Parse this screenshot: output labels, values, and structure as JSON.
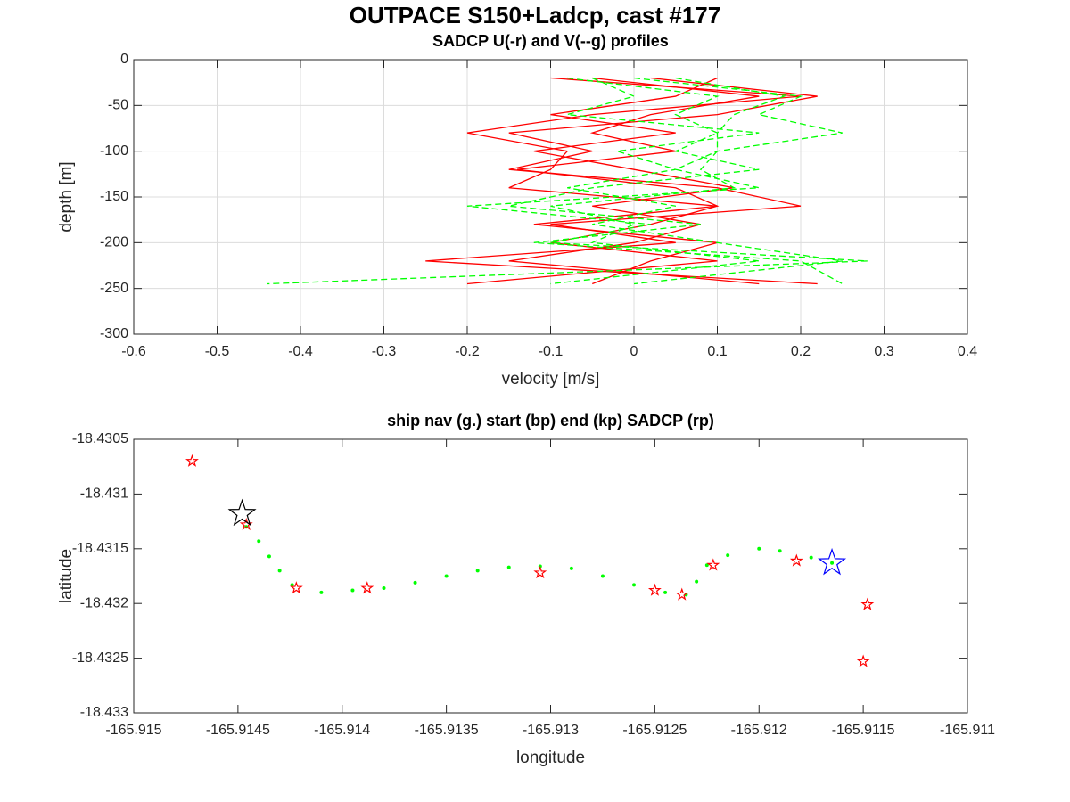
{
  "title": "OUTPACE S150+Ladcp, cast #177",
  "chart_data": [
    {
      "type": "line",
      "title": "SADCP U(-r) and V(--g) profiles",
      "xlabel": "velocity [m/s]",
      "ylabel": "depth [m]",
      "xlim": [
        -0.6,
        0.4
      ],
      "xticks": [
        -0.6,
        -0.5,
        -0.4,
        -0.3,
        -0.2,
        -0.1,
        0,
        0.1,
        0.2,
        0.3,
        0.4
      ],
      "ylim": [
        -300,
        0
      ],
      "yticks": [
        -300,
        -250,
        -200,
        -150,
        -100,
        -50,
        0
      ],
      "grid": true,
      "y": [
        -20,
        -40,
        -60,
        -80,
        -100,
        -120,
        -140,
        -160,
        -180,
        -200,
        -220,
        -245
      ],
      "series": [
        {
          "color": "#ff0000",
          "dash": false,
          "x": [
            0.02,
            0.22,
            0.1,
            -0.15,
            -0.05,
            -0.15,
            0.1,
            0.2,
            -0.1,
            0.05,
            -0.25,
            0.22
          ]
        },
        {
          "color": "#ff0000",
          "dash": false,
          "x": [
            -0.05,
            0.15,
            0.02,
            -0.05,
            0.05,
            -0.14,
            0.05,
            0.1,
            0.02,
            -0.1,
            0.1,
            -0.2
          ]
        },
        {
          "color": "#ff0000",
          "dash": false,
          "x": [
            0.1,
            0.05,
            -0.1,
            0.05,
            -0.12,
            0.0,
            0.12,
            -0.05,
            0.08,
            0.0,
            -0.15,
            0.15
          ]
        },
        {
          "color": "#ff0000",
          "dash": false,
          "x": [
            -0.1,
            0.2,
            -0.05,
            -0.2,
            -0.08,
            -0.1,
            -0.15,
            0.1,
            -0.12,
            0.1,
            0.02,
            -0.05
          ]
        },
        {
          "color": "#00ff00",
          "dash": true,
          "x": [
            0.0,
            0.2,
            0.15,
            0.25,
            0.1,
            0.05,
            0.15,
            -0.2,
            0.02,
            -0.1,
            0.28,
            -0.44
          ]
        },
        {
          "color": "#00ff00",
          "dash": true,
          "x": [
            -0.08,
            0.1,
            0.05,
            0.1,
            0.05,
            0.15,
            -0.05,
            -0.15,
            0.08,
            -0.12,
            0.2,
            0.25
          ]
        },
        {
          "color": "#00ff00",
          "dash": true,
          "x": [
            0.05,
            0.18,
            0.12,
            0.1,
            0.1,
            0.08,
            0.12,
            -0.1,
            0.0,
            -0.05,
            0.15,
            -0.1
          ]
        },
        {
          "color": "#00ff00",
          "dash": true,
          "x": [
            -0.05,
            0.0,
            -0.08,
            0.15,
            -0.02,
            0.05,
            -0.08,
            0.05,
            -0.05,
            0.1,
            0.25,
            0.0
          ]
        }
      ]
    },
    {
      "type": "scatter",
      "title": "ship nav (g.) start (bp) end (kp) SADCP (rp)",
      "xlabel": "longitude",
      "ylabel": "latitude",
      "xlim": [
        -165.915,
        -165.911
      ],
      "xticks": [
        -165.915,
        -165.9145,
        -165.914,
        -165.9135,
        -165.913,
        -165.9125,
        -165.912,
        -165.9115,
        -165.911
      ],
      "ylim": [
        -18.433,
        -18.4305
      ],
      "yticks": [
        -18.433,
        -18.4325,
        -18.432,
        -18.4315,
        -18.431,
        -18.4305
      ],
      "grid": false,
      "series": [
        {
          "color": "#00ff00",
          "marker": "dot",
          "x": [
            -165.91446,
            -165.9144,
            -165.91435,
            -165.9143,
            -165.91424,
            -165.9141,
            -165.91395,
            -165.9138,
            -165.91365,
            -165.9135,
            -165.91335,
            -165.9132,
            -165.91305,
            -165.9129,
            -165.91275,
            -165.9126,
            -165.91245,
            -165.91235,
            -165.9123,
            -165.91225,
            -165.91215,
            -165.912,
            -165.9119,
            -165.91175,
            -165.91165
          ],
          "y": [
            -18.4313,
            -18.43143,
            -18.43157,
            -18.4317,
            -18.43183,
            -18.4319,
            -18.43188,
            -18.43186,
            -18.43181,
            -18.43175,
            -18.4317,
            -18.43167,
            -18.43166,
            -18.43168,
            -18.43175,
            -18.43183,
            -18.4319,
            -18.43192,
            -18.4318,
            -18.43165,
            -18.43156,
            -18.4315,
            -18.43152,
            -18.43158,
            -18.43163
          ]
        },
        {
          "color": "#ff0000",
          "marker": "star",
          "size": 6,
          "x": [
            -165.91472,
            -165.91446,
            -165.91422,
            -165.91388,
            -165.91305,
            -165.9125,
            -165.91237,
            -165.91222,
            -165.91182,
            -165.91148,
            -165.9115
          ],
          "y": [
            -18.4307,
            -18.43128,
            -18.43186,
            -18.43186,
            -18.43172,
            -18.43188,
            -18.43192,
            -18.43165,
            -18.43161,
            -18.43201,
            -18.43253
          ]
        },
        {
          "color": "#000000",
          "marker": "star",
          "size": 15,
          "x": [
            -165.91448
          ],
          "y": [
            -18.43118
          ]
        },
        {
          "color": "#0000ff",
          "marker": "star",
          "size": 15,
          "x": [
            -165.91165
          ],
          "y": [
            -18.43163
          ]
        }
      ]
    }
  ]
}
